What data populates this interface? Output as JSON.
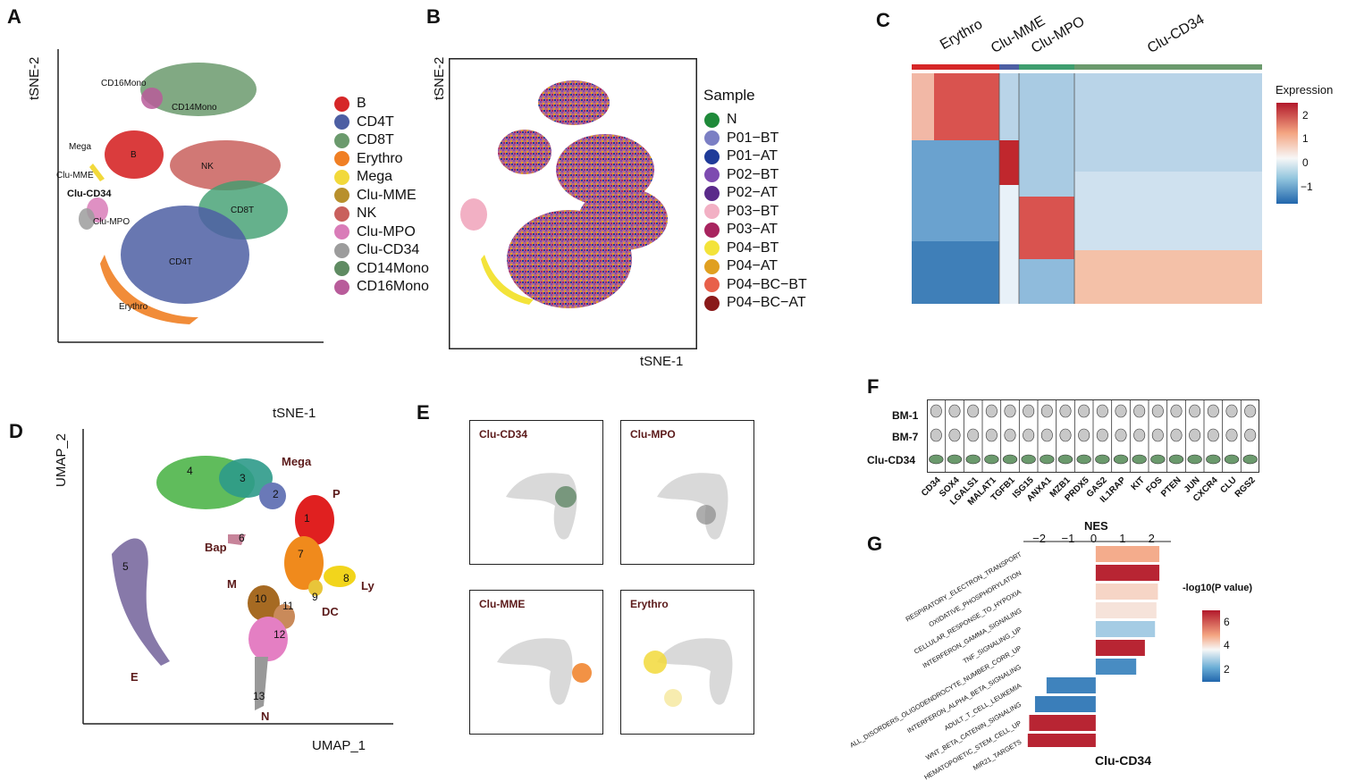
{
  "panels": {
    "A": {
      "letter": "A",
      "ylabel": "tSNE-2",
      "xlabel": "tSNE-1",
      "cluster_labels": [
        "CD16Mono",
        "CD14Mono",
        "Mega",
        "B",
        "NK",
        "Clu-MME",
        "Clu-CD34",
        "Clu-MPO",
        "CD8T",
        "CD4T",
        "Erythro"
      ],
      "legend": [
        {
          "name": "B",
          "color": "#d62728"
        },
        {
          "name": "CD4T",
          "color": "#4d5fa3"
        },
        {
          "name": "CD8T",
          "color": "#6b9a6d"
        },
        {
          "name": "Erythro",
          "color": "#f07f24"
        },
        {
          "name": "Mega",
          "color": "#f2d93b"
        },
        {
          "name": "Clu-MME",
          "color": "#b8902d"
        },
        {
          "name": "NK",
          "color": "#c9605d"
        },
        {
          "name": "Clu-MPO",
          "color": "#d97cb8"
        },
        {
          "name": "Clu-CD34",
          "color": "#9c9c9c"
        },
        {
          "name": "CD14Mono",
          "color": "#5f8b62"
        },
        {
          "name": "CD16Mono",
          "color": "#b85c9a"
        }
      ]
    },
    "B": {
      "letter": "B",
      "ylabel": "tSNE-2",
      "xlabel": "tSNE-1",
      "legend_title": "Sample",
      "legend": [
        {
          "name": "N",
          "color": "#1f8a3a"
        },
        {
          "name": "P01−BT",
          "color": "#7b7fc4"
        },
        {
          "name": "P01−AT",
          "color": "#1f3b99"
        },
        {
          "name": "P02−BT",
          "color": "#7d4bb0"
        },
        {
          "name": "P02−AT",
          "color": "#5a2a8a"
        },
        {
          "name": "P03−BT",
          "color": "#f2b0c4"
        },
        {
          "name": "P03−AT",
          "color": "#a8245f"
        },
        {
          "name": "P04−BT",
          "color": "#f3e33a"
        },
        {
          "name": "P04−AT",
          "color": "#e0a021"
        },
        {
          "name": "P04−BC−BT",
          "color": "#e8604a"
        },
        {
          "name": "P04−BC−AT",
          "color": "#8a1a1a"
        }
      ]
    },
    "C": {
      "letter": "C",
      "groups": [
        "Erythro",
        "Clu-MME",
        "Clu-MPO",
        "Clu-CD34"
      ],
      "legend_title": "Expression",
      "ticks": [
        "2",
        "1",
        "0",
        "−1"
      ]
    },
    "D": {
      "letter": "D",
      "ylabel": "UMAP_2",
      "xlabel": "UMAP_1",
      "labels": [
        "Mega",
        "P",
        "Bap",
        "M",
        "DC",
        "Ly",
        "E",
        "N"
      ],
      "numbers": [
        "1",
        "2",
        "3",
        "4",
        "5",
        "6",
        "7",
        "8",
        "9",
        "10",
        "11",
        "12",
        "13"
      ]
    },
    "E": {
      "letter": "E",
      "plots": [
        "Clu-CD34",
        "Clu-MPO",
        "Clu-MME",
        "Erythro"
      ]
    },
    "F": {
      "letter": "F",
      "rows": [
        "BM-1",
        "BM-7",
        "Clu-CD34"
      ],
      "genes": [
        "CD34",
        "SOX4",
        "LGALS1",
        "MALAT1",
        "TGFB1",
        "ISG15",
        "ANXA1",
        "MZB1",
        "PRDX5",
        "GAS2",
        "IL1RAP",
        "KIT",
        "FOS",
        "PTEN",
        "JUN",
        "CXCR4",
        "CLU",
        "RGS2"
      ]
    },
    "G": {
      "letter": "G",
      "xlabel_top": "NES",
      "xlabel_bottom": "Clu-CD34",
      "ticks": [
        "−2",
        "−1",
        "0",
        "1",
        "2"
      ],
      "legend_title": "-log10(P value)",
      "legend_ticks": [
        "6",
        "4",
        "2"
      ]
    }
  },
  "chart_data": [
    {
      "type": "bar",
      "orientation": "horizontal",
      "title": "",
      "xlabel": "NES",
      "xlim": [
        -2.5,
        2.6
      ],
      "categories": [
        "RESPIRATORY_ELECTRON_TRANSPORT",
        "OXIDATIVE_PHOSPHORYLATION",
        "CELLULAR_RESPONSE_TO_HYPOXIA",
        "INTERFERON_GAMMA_SIGNALING",
        "TNF_SIGNALING_UP",
        "ALL_DISORDERS_OLIGODENDROCYTE_NUMBER_CORR_UP",
        "INTERFERON_ALPHA_BETA_SIGNALING",
        "ADULT_T_CELL_LEUKEMIA",
        "WNT_BETA_CATENIN_SIGNALING",
        "HEMATOPOIETIC_STEM_CELL_UP",
        "MIR21_TARGETS"
      ],
      "values": [
        2.2,
        2.2,
        2.15,
        2.1,
        2.05,
        1.7,
        1.4,
        -1.7,
        -2.1,
        -2.3,
        -2.35
      ],
      "neglog10p": [
        4.8,
        6.8,
        4.2,
        4.0,
        3.0,
        6.8,
        1.8,
        1.6,
        1.5,
        6.8,
        6.8
      ],
      "colorbar_range": [
        1,
        7
      ]
    }
  ]
}
